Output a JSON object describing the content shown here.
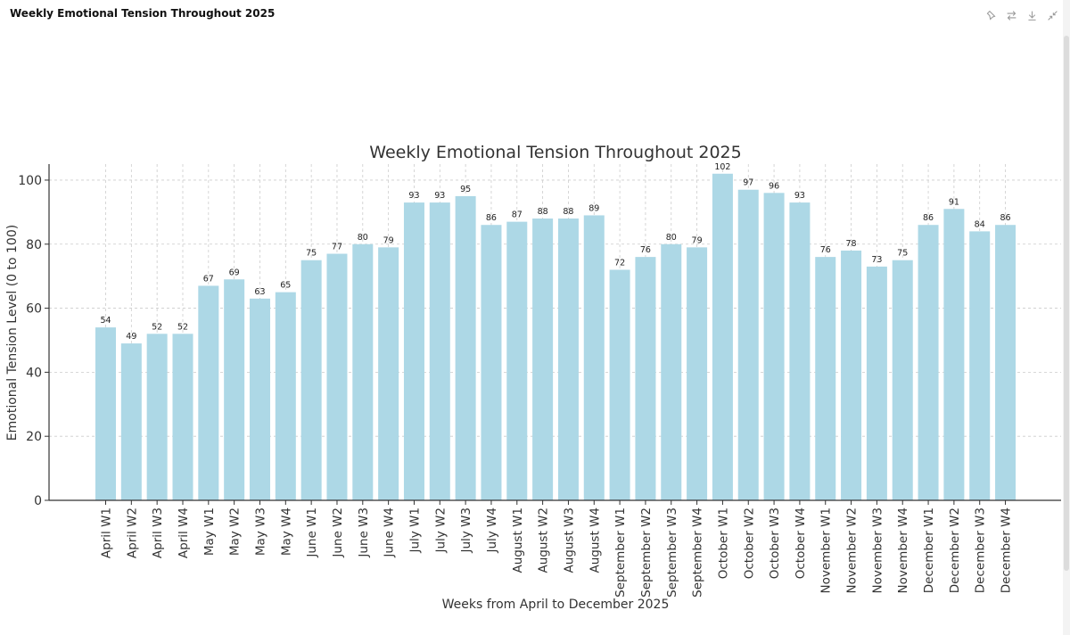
{
  "app": {
    "title": "Weekly Emotional Tension Throughout 2025",
    "toolbar_icons": [
      "pin-icon",
      "transpose-icon",
      "download-icon",
      "collapse-icon"
    ]
  },
  "colors": {
    "bar": "#add8e6",
    "grid": "#cccccc",
    "axis": "#333333",
    "text": "#333333"
  },
  "chart_data": {
    "type": "bar",
    "title": "Weekly Emotional Tension Throughout 2025",
    "xlabel": "Weeks from April to December 2025",
    "ylabel": "Emotional Tension Level (0 to 100)",
    "ylim": [
      0,
      105
    ],
    "yticks": [
      0,
      20,
      40,
      60,
      80,
      100
    ],
    "grid": true,
    "categories": [
      "April W1",
      "April W2",
      "April W3",
      "April W4",
      "May W1",
      "May W2",
      "May W3",
      "May W4",
      "June W1",
      "June W2",
      "June W3",
      "June W4",
      "July W1",
      "July W2",
      "July W3",
      "July W4",
      "August W1",
      "August W2",
      "August W3",
      "August W4",
      "September W1",
      "September W2",
      "September W3",
      "September W4",
      "October W1",
      "October W2",
      "October W3",
      "October W4",
      "November W1",
      "November W2",
      "November W3",
      "November W4",
      "December W1",
      "December W2",
      "December W3",
      "December W4"
    ],
    "values": [
      54,
      49,
      52,
      52,
      67,
      69,
      63,
      65,
      75,
      77,
      80,
      79,
      93,
      93,
      95,
      86,
      87,
      88,
      88,
      89,
      72,
      76,
      80,
      79,
      102,
      97,
      96,
      93,
      76,
      78,
      73,
      75,
      86,
      91,
      84,
      86
    ]
  }
}
